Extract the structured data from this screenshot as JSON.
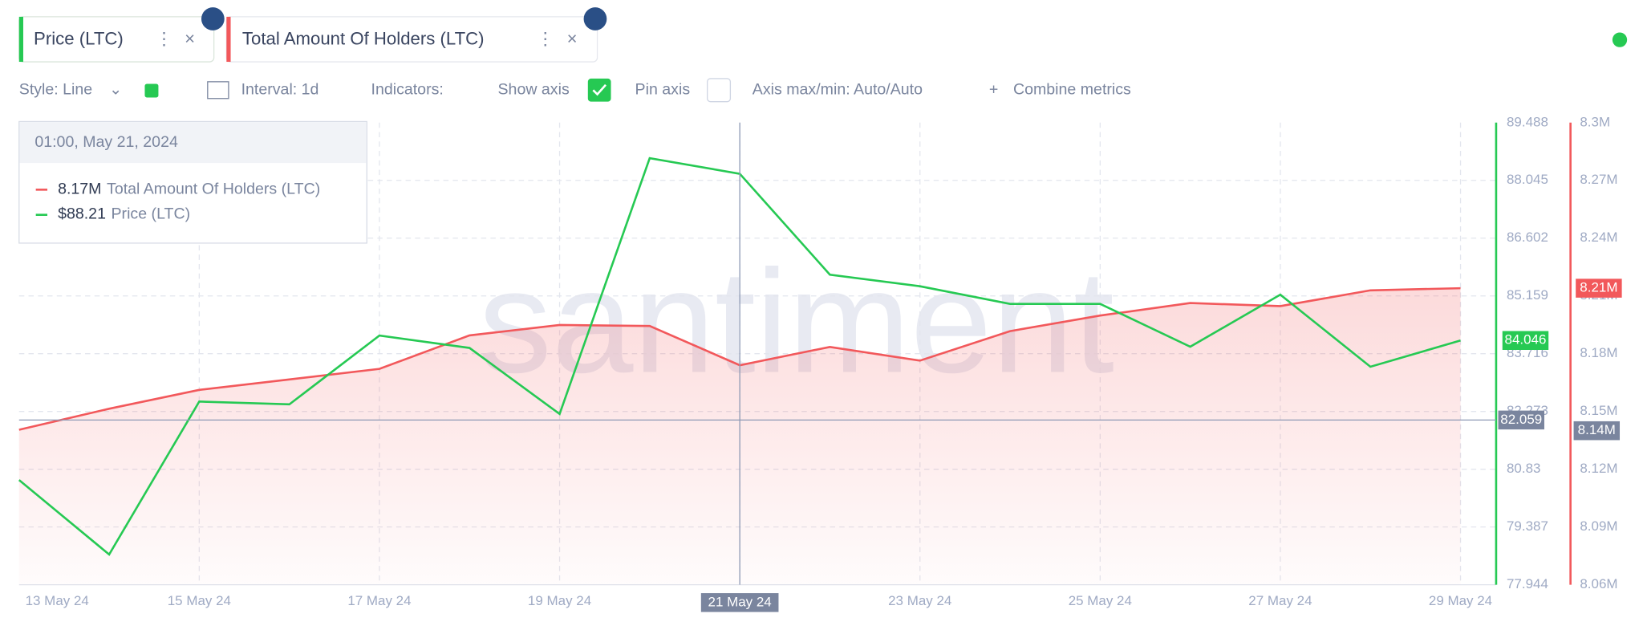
{
  "toolbar": {
    "style": "Style: Line",
    "interval": "Interval: 1d",
    "indicators": "Indicators:",
    "show_axis": "Show axis",
    "pin_axis": "Pin axis",
    "axis_maxmin": "Axis max/min: Auto/Auto",
    "combine": "Combine metrics"
  },
  "watermark": "santiment",
  "chart_data": {
    "type": "line",
    "categories": [
      "13 May 24",
      null,
      "15 May 24",
      null,
      "17 May 24",
      null,
      "19 May 24",
      null,
      "21 May 24",
      null,
      "23 May 24",
      null,
      "25 May 24",
      null,
      "27 May 24",
      null,
      "29 May 24"
    ],
    "series": [
      {
        "name": "Price (LTC)",
        "color": "#26c953",
        "axis": "y",
        "values": [
          80.56,
          78.7,
          82.52,
          82.45,
          84.17,
          83.86,
          82.21,
          88.6,
          88.21,
          85.69,
          85.4,
          84.96,
          84.96,
          83.89,
          85.19,
          83.39,
          84.046
        ],
        "value_labels": [
          null,
          null,
          null,
          null,
          null,
          null,
          null,
          null,
          "$88.21",
          null,
          null,
          null,
          null,
          null,
          null,
          null,
          null
        ]
      },
      {
        "name": "Total Amount Of Holders (LTC)",
        "color": "#f2585b",
        "axis": "y2",
        "values": [
          8140500,
          8151400,
          8161200,
          8166600,
          8172100,
          8189500,
          8194900,
          8194400,
          8174000,
          8183500,
          8176400,
          8191700,
          8199800,
          8206300,
          8204700,
          8212900,
          8214000
        ],
        "value_labels": [
          null,
          null,
          null,
          null,
          null,
          null,
          null,
          null,
          "8.17M",
          null,
          null,
          null,
          null,
          null,
          null,
          null,
          "8.21M"
        ]
      }
    ],
    "ylim": [
      77.944,
      89.488
    ],
    "yticks": [
      77.944,
      79.387,
      80.83,
      82.273,
      83.716,
      85.159,
      86.602,
      88.045,
      89.488
    ],
    "y2lim": [
      8060000,
      8300000
    ],
    "y2ticks": [
      {
        "value": 8060000,
        "label": "8.06M"
      },
      {
        "value": 8090000,
        "label": "8.09M"
      },
      {
        "value": 8120000,
        "label": "8.12M"
      },
      {
        "value": 8150000,
        "label": "8.15M"
      },
      {
        "value": 8180000,
        "label": "8.18M"
      },
      {
        "value": 8210000,
        "label": "8.21M"
      },
      {
        "value": 8240000,
        "label": "8.24M"
      },
      {
        "value": 8270000,
        "label": "8.27M"
      },
      {
        "value": 8300000,
        "label": "8.3M"
      }
    ],
    "grid": true,
    "tooltip": {
      "title": "01:00, May 21, 2024",
      "index": 8
    },
    "crosshair": {
      "y": 82.059,
      "y2": 8140000,
      "y2_label": "8.14M",
      "index": 8
    }
  }
}
